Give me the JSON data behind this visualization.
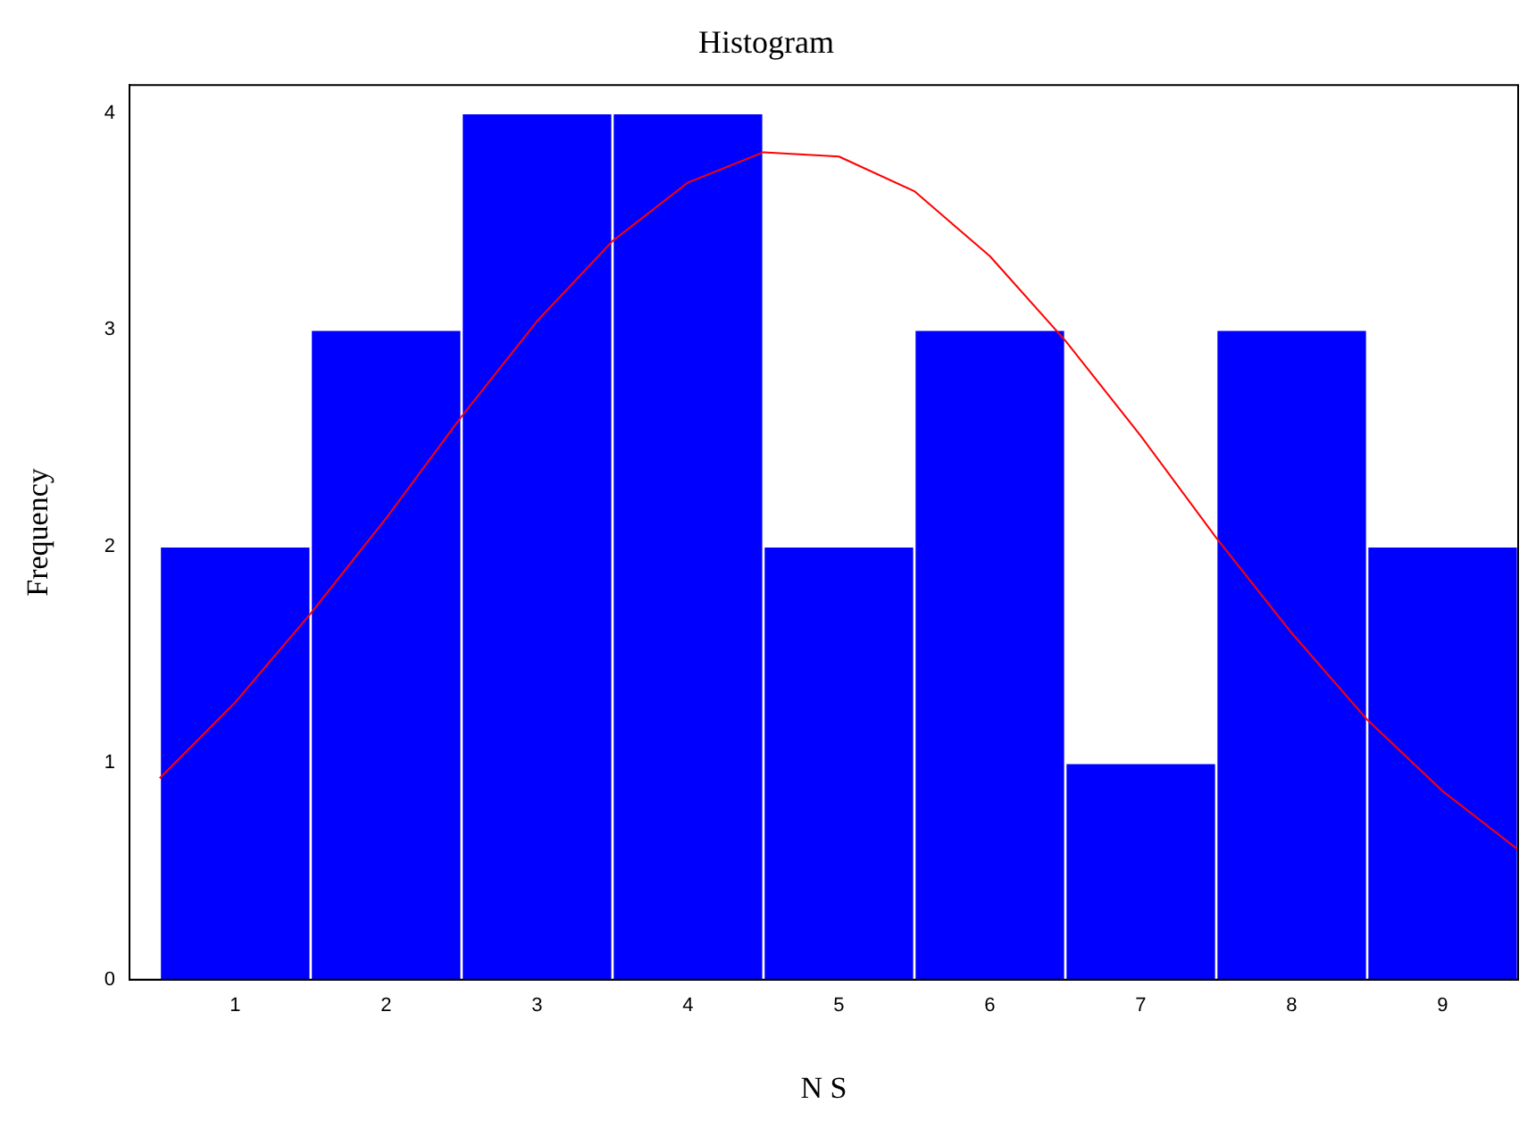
{
  "chart_data": {
    "type": "histogram",
    "title": "Histogram",
    "xlabel": "N S",
    "ylabel": "Frequency",
    "bins": [
      0.5,
      1.5,
      2.5,
      3.5,
      4.5,
      5.5,
      6.5,
      7.5,
      8.5,
      9.5
    ],
    "values": [
      2,
      3,
      4,
      4,
      2,
      3,
      1,
      3,
      2
    ],
    "color": "#0000ff",
    "series": [
      {
        "type": "line",
        "color": "#ff0000",
        "x": [
          0.5,
          1,
          1.5,
          2,
          2.5,
          3,
          3.5,
          4,
          4.5,
          5,
          5.5,
          6,
          6.5,
          7,
          7.5,
          8,
          8.5,
          9,
          9.5
        ],
        "values": [
          0.93,
          1.28,
          1.69,
          2.13,
          2.6,
          3.04,
          3.41,
          3.68,
          3.82,
          3.8,
          3.64,
          3.34,
          2.95,
          2.51,
          2.04,
          1.6,
          1.2,
          0.87,
          0.6
        ]
      }
    ],
    "xlim": [
      0.3,
      9.5
    ],
    "xticks": [
      1,
      2,
      3,
      4,
      5,
      6,
      7,
      8,
      9
    ],
    "ylim": [
      0,
      4.13
    ],
    "yticks": [
      0,
      1,
      2,
      3,
      4
    ],
    "grid": false,
    "legend": false,
    "marker": "none",
    "line_style": "solid"
  }
}
